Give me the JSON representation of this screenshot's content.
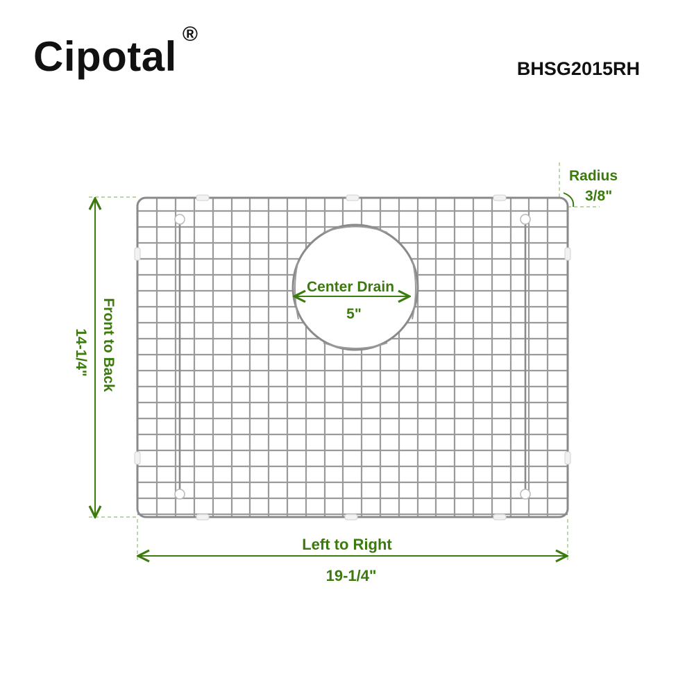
{
  "brand": {
    "name": "Cipotal",
    "mark": "®"
  },
  "model": "BHSG2015RH",
  "dimensions": {
    "radius_label": "Radius",
    "radius_value": "3/8\"",
    "drain_label": "Center Drain",
    "drain_value": "5\"",
    "depth_label": "Front to Back",
    "depth_value": "14-1/4\"",
    "width_label": "Left to Right",
    "width_value": "19-1/4\""
  },
  "colors": {
    "dimension": "#3b7a0c",
    "guide": "#8fbf6a",
    "wire": "#9a9a9a",
    "text": "#111111"
  }
}
